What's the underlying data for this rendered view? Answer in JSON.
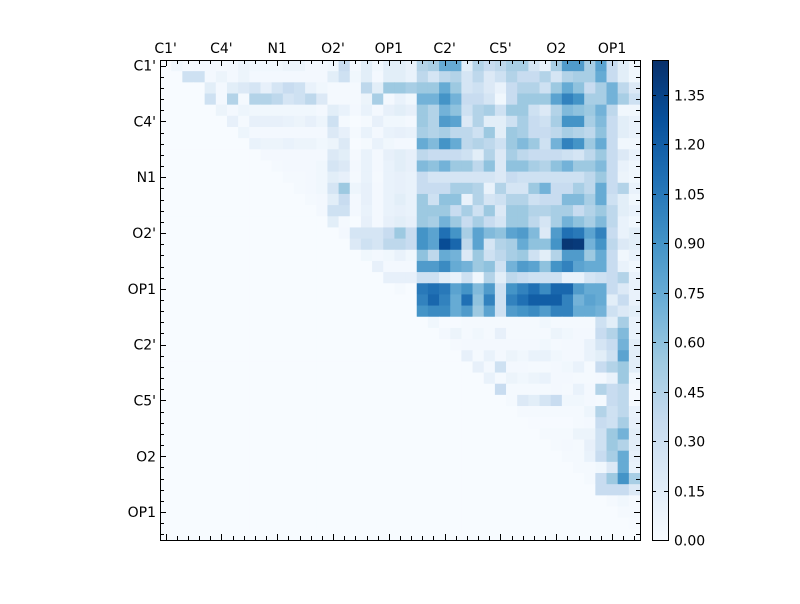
{
  "chart_data": {
    "type": "heatmap",
    "title": "",
    "size": 43,
    "x_tick_labels": [
      "C1'",
      "C4'",
      "N1",
      "O2'",
      "OP1",
      "C2'",
      "C5'",
      "O2",
      "OP1"
    ],
    "y_tick_labels": [
      "C1'",
      "C4'",
      "N1",
      "O2'",
      "OP1",
      "C2'",
      "C5'",
      "O2",
      "OP1"
    ],
    "tick_label_every": 5,
    "x_labels_position": "top",
    "colormap": "Blues",
    "colormap_stops": [
      "#f7fbff",
      "#deebf7",
      "#c6dbef",
      "#9ecae1",
      "#6baed6",
      "#4292c6",
      "#2171b5",
      "#08519c",
      "#08306b"
    ],
    "vmin": 0.0,
    "vmax": 1.456,
    "colorbar": {
      "position": "right",
      "ticks": [
        0.0,
        0.15,
        0.3,
        0.45,
        0.6,
        0.75,
        0.9,
        1.05,
        1.2,
        1.35
      ],
      "tick_labels": [
        "0.00",
        "0.15",
        "0.30",
        "0.45",
        "0.60",
        "0.75",
        "0.90",
        "1.05",
        "1.20",
        "1.35"
      ]
    },
    "rows_format": "each row = [start_column, values from start_column to last column]; other cells are 0",
    "rows": [
      [
        1,
        [
          0.05,
          0.02,
          0.03,
          0.03,
          0.02,
          0.03,
          0.08,
          0.05,
          0.05,
          0.05,
          0.08,
          0.08,
          0.03,
          0.03,
          0.05,
          0.35,
          0.03,
          0.15,
          0.05,
          0.15,
          0.15,
          0.1,
          0.45,
          0.5,
          0.75,
          0.75,
          0.15,
          0.45,
          0.35,
          0.4,
          0.5,
          0.5,
          0.25,
          0.1,
          0.5,
          0.85,
          0.85,
          0.5,
          0.8,
          0.35,
          0.15,
          0.05
        ]
      ],
      [
        2,
        [
          0.3,
          0.3,
          0.03,
          0.08,
          0.03,
          0.08,
          0.03,
          0.03,
          0.03,
          0.03,
          0.03,
          0.03,
          0.03,
          0.15,
          0.3,
          0.05,
          0.15,
          0.03,
          0.15,
          0.15,
          0.1,
          0.4,
          0.25,
          0.4,
          0.45,
          0.25,
          0.4,
          0.2,
          0.3,
          0.45,
          0.35,
          0.35,
          0.45,
          0.25,
          0.45,
          0.5,
          0.5,
          0.75,
          0.35,
          0.15,
          0.05
        ]
      ],
      [
        4,
        [
          0.15,
          0.03,
          0.15,
          0.2,
          0.25,
          0.12,
          0.25,
          0.35,
          0.3,
          0.1,
          0.05,
          0.02,
          0.02,
          0.02,
          0.4,
          0.15,
          0.55,
          0.55,
          0.5,
          0.55,
          0.55,
          0.75,
          0.55,
          0.25,
          0.3,
          0.2,
          0.1,
          0.35,
          0.45,
          0.45,
          0.3,
          0.55,
          0.75,
          0.6,
          0.35,
          0.5,
          0.7,
          0.4,
          0.2
        ]
      ],
      [
        4,
        [
          0.3,
          0.03,
          0.45,
          0.02,
          0.45,
          0.45,
          0.4,
          0.25,
          0.3,
          0.4,
          0.2,
          0.02,
          0.02,
          0.02,
          0.08,
          0.5,
          0.03,
          0.1,
          0.05,
          0.7,
          0.7,
          0.9,
          0.7,
          0.35,
          0.35,
          0.25,
          0.05,
          0.35,
          0.55,
          0.55,
          0.55,
          0.8,
          1.0,
          0.9,
          0.5,
          0.5,
          0.7,
          0.5,
          0.3
        ]
      ],
      [
        5,
        [
          0.08,
          0.03,
          0.07,
          0.05,
          0.05,
          0.05,
          0.05,
          0.05,
          0.05,
          0.03,
          0.15,
          0.1,
          0.03,
          0.1,
          0.03,
          0.12,
          0.15,
          0.12,
          0.55,
          0.45,
          0.7,
          0.6,
          0.3,
          0.45,
          0.5,
          0.3,
          0.55,
          0.55,
          0.3,
          0.2,
          0.45,
          0.65,
          0.6,
          0.55,
          0.7,
          0.4,
          0.05,
          0.05
        ]
      ],
      [
        6,
        [
          0.12,
          0.02,
          0.12,
          0.12,
          0.12,
          0.1,
          0.08,
          0.12,
          0.07,
          0.3,
          0.02,
          0.0,
          0.02,
          0.12,
          0.05,
          0.05,
          0.03,
          0.55,
          0.45,
          0.85,
          0.8,
          0.2,
          0.45,
          0.15,
          0.15,
          0.3,
          0.5,
          0.35,
          0.3,
          0.5,
          0.9,
          0.9,
          0.5,
          0.65,
          0.35,
          0.15,
          0.1
        ]
      ],
      [
        7,
        [
          0.07,
          0.03,
          0.03,
          0.03,
          0.03,
          0.03,
          0.03,
          0.03,
          0.2,
          0.12,
          0.02,
          0.1,
          0.03,
          0.1,
          0.12,
          0.1,
          0.5,
          0.45,
          0.5,
          0.4,
          0.4,
          0.3,
          0.55,
          0.15,
          0.55,
          0.5,
          0.35,
          0.35,
          0.4,
          0.5,
          0.45,
          0.4,
          0.6,
          0.35,
          0.15,
          0.1
        ]
      ],
      [
        8,
        [
          0.1,
          0.08,
          0.08,
          0.1,
          0.08,
          0.08,
          0.05,
          0.08,
          0.2,
          0.0,
          0.02,
          0.1,
          0.05,
          0.03,
          0.03,
          0.75,
          0.65,
          0.9,
          0.75,
          0.4,
          0.45,
          0.4,
          0.3,
          0.55,
          0.65,
          0.55,
          0.3,
          0.7,
          1.0,
          0.9,
          0.55,
          0.75,
          0.35,
          0.05,
          0.05
        ]
      ],
      [
        9,
        [
          0.03,
          0.03,
          0.03,
          0.03,
          0.03,
          0.03,
          0.2,
          0.15,
          0.02,
          0.1,
          0.03,
          0.12,
          0.15,
          0.12,
          0.4,
          0.35,
          0.35,
          0.35,
          0.3,
          0.15,
          0.45,
          0.2,
          0.5,
          0.4,
          0.35,
          0.35,
          0.35,
          0.3,
          0.25,
          0.4,
          0.55,
          0.35,
          0.2,
          0.1
        ]
      ],
      [
        10,
        [
          0.02,
          0.03,
          0.03,
          0.03,
          0.05,
          0.25,
          0.2,
          0.03,
          0.1,
          0.03,
          0.1,
          0.15,
          0.12,
          0.65,
          0.6,
          0.7,
          0.55,
          0.55,
          0.4,
          0.6,
          0.2,
          0.6,
          0.6,
          0.5,
          0.45,
          0.6,
          0.7,
          0.55,
          0.55,
          0.65,
          0.35,
          0.1,
          0.05
        ]
      ],
      [
        11,
        [
          0.02,
          0.02,
          0.03,
          0.05,
          0.15,
          0.12,
          0.02,
          0.1,
          0.02,
          0.1,
          0.12,
          0.1,
          0.35,
          0.25,
          0.25,
          0.25,
          0.25,
          0.25,
          0.25,
          0.2,
          0.35,
          0.3,
          0.3,
          0.3,
          0.3,
          0.3,
          0.3,
          0.4,
          0.55,
          0.35,
          0.08,
          0.05
        ]
      ],
      [
        12,
        [
          0.02,
          0.03,
          0.05,
          0.25,
          0.55,
          0.07,
          0.12,
          0.03,
          0.1,
          0.12,
          0.1,
          0.35,
          0.35,
          0.35,
          0.5,
          0.5,
          0.45,
          0.1,
          0.45,
          0.25,
          0.25,
          0.55,
          0.7,
          0.35,
          0.35,
          0.5,
          0.4,
          0.75,
          0.35,
          0.45,
          0.1
        ]
      ],
      [
        13,
        [
          0.02,
          0.03,
          0.15,
          0.35,
          0.03,
          0.12,
          0.03,
          0.1,
          0.15,
          0.1,
          0.55,
          0.3,
          0.6,
          0.6,
          0.1,
          0.45,
          0.25,
          0.3,
          0.45,
          0.45,
          0.3,
          0.35,
          0.35,
          0.65,
          0.65,
          0.5,
          0.75,
          0.3,
          0.15,
          0.05
        ]
      ],
      [
        14,
        [
          0.03,
          0.3,
          0.3,
          0.03,
          0.1,
          0.03,
          0.1,
          0.12,
          0.1,
          0.55,
          0.55,
          0.55,
          0.35,
          0.5,
          0.3,
          0.55,
          0.2,
          0.55,
          0.55,
          0.45,
          0.45,
          0.5,
          0.5,
          0.35,
          0.45,
          0.55,
          0.4,
          0.15,
          0.1
        ]
      ],
      [
        15,
        [
          0.15,
          0.02,
          0.0,
          0.12,
          0.03,
          0.12,
          0.15,
          0.12,
          0.55,
          0.5,
          0.7,
          0.55,
          0.35,
          0.5,
          0.35,
          0.25,
          0.55,
          0.55,
          0.4,
          0.25,
          0.5,
          0.7,
          0.6,
          0.5,
          0.65,
          0.4,
          0.1,
          0.05
        ]
      ],
      [
        16,
        [
          0.03,
          0.25,
          0.25,
          0.25,
          0.35,
          0.55,
          0.35,
          0.9,
          0.8,
          1.1,
          0.9,
          0.5,
          0.8,
          0.65,
          0.6,
          0.8,
          0.85,
          0.65,
          0.2,
          0.85,
          1.1,
          1.05,
          0.8,
          1.0,
          0.35,
          0.1,
          0.15
        ]
      ],
      [
        17,
        [
          0.2,
          0.3,
          0.25,
          0.4,
          0.4,
          0.35,
          0.9,
          0.8,
          1.3,
          1.15,
          0.4,
          0.8,
          0.25,
          0.45,
          0.5,
          0.75,
          0.6,
          0.6,
          0.9,
          1.42,
          1.4,
          0.7,
          0.9,
          0.4,
          0.2,
          0.15
        ]
      ],
      [
        18,
        [
          0.05,
          0.03,
          0.05,
          0.1,
          0.05,
          0.6,
          0.4,
          0.75,
          0.7,
          0.2,
          0.55,
          0.3,
          0.4,
          0.5,
          0.55,
          0.3,
          0.15,
          0.45,
          0.85,
          0.85,
          0.55,
          0.75,
          0.35,
          0.05,
          0.1
        ]
      ],
      [
        19,
        [
          0.12,
          0.03,
          0.03,
          0.03,
          0.85,
          0.85,
          0.95,
          0.75,
          0.7,
          0.55,
          0.6,
          0.3,
          0.7,
          0.85,
          0.8,
          0.6,
          0.9,
          1.0,
          0.8,
          0.75,
          0.75,
          0.35,
          0.1,
          0.05
        ]
      ],
      [
        20,
        [
          0.12,
          0.12,
          0.12,
          0.3,
          0.3,
          0.15,
          0.1,
          0.3,
          0.05,
          0.45,
          0.15,
          0.4,
          0.35,
          0.3,
          0.3,
          0.3,
          0.1,
          0.1,
          0.25,
          0.3,
          0.35,
          0.45,
          0.1
        ]
      ],
      [
        21,
        [
          0.02,
          0.0,
          1.05,
          1.1,
          1.05,
          0.8,
          0.9,
          0.65,
          0.85,
          0.3,
          0.9,
          1.0,
          1.1,
          0.95,
          1.15,
          1.15,
          0.85,
          0.75,
          0.75,
          0.35,
          0.2,
          0.1
        ]
      ],
      [
        23,
        [
          1.0,
          1.15,
          1.0,
          0.75,
          1.1,
          0.6,
          1.0,
          0.3,
          1.0,
          1.1,
          1.2,
          1.2,
          1.2,
          1.0,
          0.7,
          0.8,
          0.75,
          0.15,
          0.35,
          0.1
        ]
      ],
      [
        23,
        [
          0.9,
          0.95,
          0.95,
          0.75,
          0.85,
          0.55,
          0.8,
          0.3,
          0.85,
          0.9,
          0.95,
          0.85,
          1.0,
          1.0,
          0.75,
          0.75,
          0.7,
          0.3,
          0.2,
          0.15
        ]
      ],
      [
        24,
        [
          0.05,
          0.01,
          0.01,
          0.02,
          0.02,
          0.02,
          0.02,
          0.02,
          0.02,
          0.02,
          0.05,
          0.02,
          0.02,
          0.02,
          0.02,
          0.3,
          0.15,
          0.5,
          0.1
        ]
      ],
      [
        25,
        [
          0.03,
          0.08,
          0.02,
          0.05,
          0.02,
          0.12,
          0.02,
          0.02,
          0.02,
          0.02,
          0.08,
          0.05,
          0.03,
          0.03,
          0.35,
          0.45,
          0.65,
          0.1
        ]
      ],
      [
        26,
        [
          0.02,
          0.03,
          0.03,
          0.03,
          0.03,
          0.03,
          0.03,
          0.03,
          0.05,
          0.02,
          0.03,
          0.03,
          0.1,
          0.25,
          0.35,
          0.7,
          0.15
        ]
      ],
      [
        27,
        [
          0.12,
          0.02,
          0.1,
          0.03,
          0.08,
          0.05,
          0.1,
          0.1,
          0.05,
          0.03,
          0.03,
          0.1,
          0.15,
          0.3,
          0.8,
          0.15
        ]
      ],
      [
        28,
        [
          0.12,
          0.03,
          0.3,
          0.03,
          0.03,
          0.02,
          0.02,
          0.03,
          0.05,
          0.1,
          0.02,
          0.35,
          0.45,
          0.55,
          0.15
        ]
      ],
      [
        29,
        [
          0.1,
          0.02,
          0.08,
          0.05,
          0.08,
          0.1,
          0.03,
          0.03,
          0.02,
          0.02,
          0.03,
          0.1,
          0.55,
          0.05
        ]
      ],
      [
        30,
        [
          0.35,
          0.02,
          0.02,
          0.02,
          0.02,
          0.03,
          0.02,
          0.1,
          0.03,
          0.45,
          0.35,
          0.4,
          0.02
        ]
      ],
      [
        31,
        [
          0.02,
          0.2,
          0.15,
          0.25,
          0.35,
          0.05,
          0.05,
          0.03,
          0.02,
          0.35,
          0.4,
          0.02
        ]
      ],
      [
        32,
        [
          0.02,
          0.02,
          0.02,
          0.02,
          0.02,
          0.02,
          0.07,
          0.45,
          0.3,
          0.4,
          0.1
        ]
      ],
      [
        33,
        [
          0.01,
          0.01,
          0.01,
          0.01,
          0.02,
          0.03,
          0.35,
          0.3,
          0.5,
          0.12
        ]
      ],
      [
        34,
        [
          0.02,
          0.02,
          0.02,
          0.08,
          0.08,
          0.3,
          0.55,
          0.7,
          0.15
        ]
      ],
      [
        35,
        [
          0.02,
          0.03,
          0.02,
          0.12,
          0.3,
          0.55,
          0.45,
          0.15
        ]
      ],
      [
        36,
        [
          0.02,
          0.02,
          0.1,
          0.35,
          0.5,
          0.75,
          0.12
        ]
      ],
      [
        37,
        [
          0.02,
          0.02,
          0.05,
          0.2,
          0.75,
          0.1
        ]
      ],
      [
        38,
        [
          0.02,
          0.35,
          0.55,
          0.9,
          0.5
        ]
      ],
      [
        39,
        [
          0.35,
          0.35,
          0.35,
          0.2
        ]
      ],
      [
        40,
        [
          0.02,
          0.05,
          0.02
        ]
      ],
      [
        41,
        [
          0.02,
          0.02
        ]
      ],
      [
        42,
        [
          0.01
        ]
      ],
      [
        42,
        [
          0.0
        ]
      ]
    ]
  }
}
